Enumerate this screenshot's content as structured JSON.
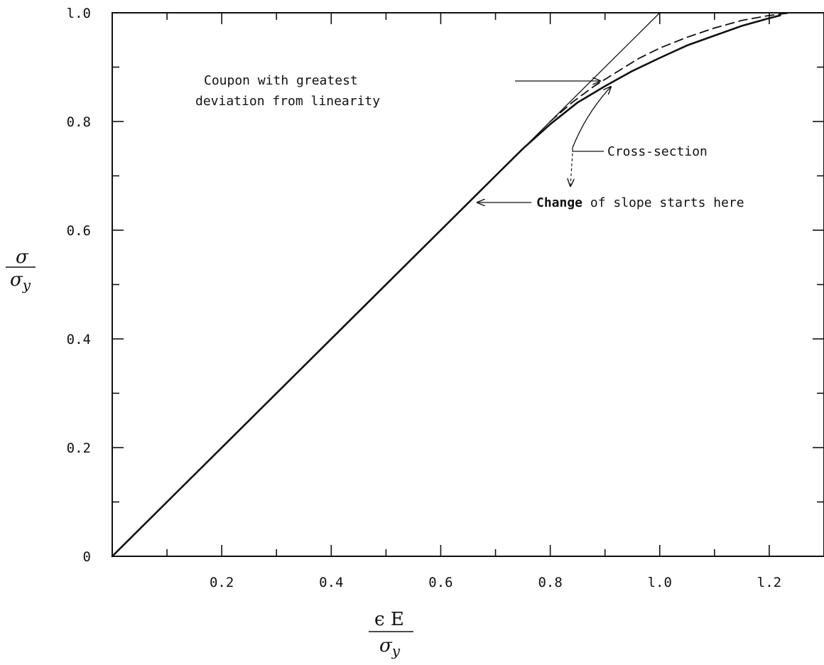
{
  "chart_data": {
    "type": "line",
    "title": "",
    "xlabel": {
      "numerator": "ϵ E",
      "denominator": "σ",
      "denominator_sub": "y"
    },
    "ylabel": {
      "numerator": "σ",
      "denominator": "σ",
      "denominator_sub": "y"
    },
    "xlim": [
      0,
      1.3
    ],
    "ylim": [
      0,
      1.0
    ],
    "x_ticks": [
      0.2,
      0.4,
      0.6,
      0.8,
      1.0,
      1.2
    ],
    "x_tick_labels": [
      "0.2",
      "0.4",
      "0.6",
      "0.8",
      "l.0",
      "l.2"
    ],
    "y_ticks": [
      0,
      0.2,
      0.4,
      0.6,
      0.8,
      1.0
    ],
    "y_tick_labels": [
      "0",
      "0.2",
      "0.4",
      "0.6",
      "0.8",
      "l.0"
    ],
    "x_minor_ticks": [
      0.1,
      0.3,
      0.5,
      0.7,
      0.9,
      1.1
    ],
    "y_minor_ticks": [
      0.1,
      0.3,
      0.5,
      0.7,
      0.9
    ],
    "grid": false,
    "series": [
      {
        "style": "thin",
        "x": [
          0,
          1.0
        ],
        "y": [
          0,
          1.0
        ]
      },
      {
        "style": "dashed",
        "x": [
          0.8,
          0.84,
          0.88,
          0.92,
          0.96,
          1.0,
          1.05,
          1.1,
          1.15,
          1.2,
          1.24
        ],
        "y": [
          0.8,
          0.835,
          0.865,
          0.89,
          0.915,
          0.935,
          0.955,
          0.972,
          0.986,
          0.995,
          1.0
        ]
      },
      {
        "style": "solid",
        "x": [
          0,
          0.66,
          0.7,
          0.75,
          0.8,
          0.85,
          0.9,
          0.95,
          1.0,
          1.05,
          1.1,
          1.15,
          1.2,
          1.22
        ],
        "y": [
          0,
          0.66,
          0.7,
          0.75,
          0.795,
          0.835,
          0.865,
          0.893,
          0.917,
          0.94,
          0.958,
          0.976,
          0.99,
          0.995
        ]
      }
    ],
    "annotations": [
      {
        "text_lines": [
          "Coupon with greatest",
          "deviation from linearity"
        ]
      },
      {
        "text": "Cross-section"
      },
      {
        "text_bold": "Change",
        "text_rest": " of slope starts here"
      }
    ]
  }
}
